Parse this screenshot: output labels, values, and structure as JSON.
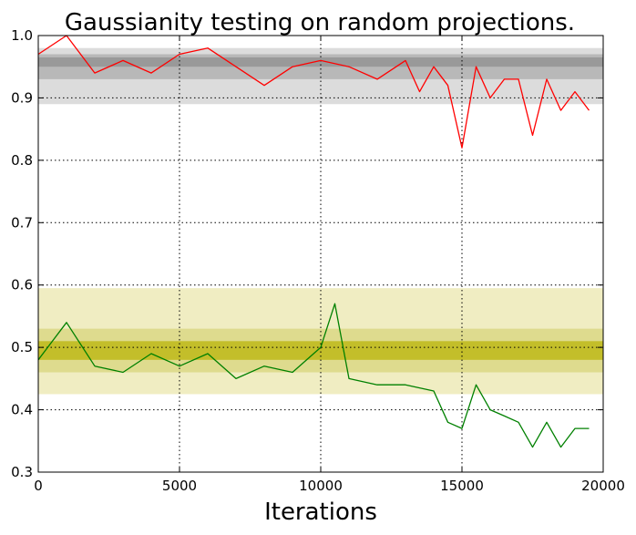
{
  "chart_data": {
    "type": "line",
    "title": "Gaussianity testing on random projections.",
    "xlabel": "Iterations",
    "ylabel": "",
    "xlim": [
      0,
      20000
    ],
    "ylim": [
      0.3,
      1.0
    ],
    "x_ticks": [
      0,
      5000,
      10000,
      15000,
      20000
    ],
    "x_tick_labels": [
      "0",
      "5000",
      "10000",
      "15000",
      "20000"
    ],
    "y_ticks": [
      0.3,
      0.4,
      0.5,
      0.6,
      0.7,
      0.8,
      0.9,
      1.0
    ],
    "y_tick_labels": [
      "0.3",
      "0.4",
      "0.5",
      "0.6",
      "0.7",
      "0.8",
      "0.9",
      "1.0"
    ],
    "grid": true,
    "legend": "none",
    "bands": [
      {
        "name": "upper-band-outer",
        "y0": 0.89,
        "y1": 0.98,
        "color": "#dcdcdc"
      },
      {
        "name": "upper-band-mid",
        "y0": 0.93,
        "y1": 0.97,
        "color": "#b8b8b8"
      },
      {
        "name": "upper-band-inner",
        "y0": 0.95,
        "y1": 0.965,
        "color": "#999999"
      },
      {
        "name": "lower-band-outer",
        "y0": 0.425,
        "y1": 0.595,
        "color": "#f0edc2"
      },
      {
        "name": "lower-band-mid",
        "y0": 0.46,
        "y1": 0.53,
        "color": "#dedb8e"
      },
      {
        "name": "lower-band-inner",
        "y0": 0.48,
        "y1": 0.51,
        "color": "#c3be2a"
      }
    ],
    "series": [
      {
        "color": "#ff0000",
        "x": [
          0,
          1000,
          2000,
          3000,
          4000,
          5000,
          6000,
          7000,
          8000,
          9000,
          10000,
          11000,
          12000,
          13000,
          13500,
          14000,
          14500,
          15000,
          15500,
          16000,
          16500,
          17000,
          17500,
          18000,
          18500,
          19000,
          19500
        ],
        "values": [
          0.97,
          1.0,
          0.94,
          0.96,
          0.94,
          0.97,
          0.98,
          0.95,
          0.92,
          0.95,
          0.96,
          0.95,
          0.93,
          0.96,
          0.91,
          0.95,
          0.92,
          0.82,
          0.95,
          0.9,
          0.93,
          0.93,
          0.84,
          0.93,
          0.88,
          0.91,
          0.88
        ]
      },
      {
        "color": "#008000",
        "x": [
          0,
          1000,
          2000,
          3000,
          4000,
          5000,
          6000,
          7000,
          8000,
          9000,
          10000,
          10500,
          11000,
          12000,
          13000,
          14000,
          14500,
          15000,
          15500,
          16000,
          16500,
          17000,
          17500,
          18000,
          18500,
          19000,
          19500
        ],
        "values": [
          0.48,
          0.54,
          0.47,
          0.46,
          0.49,
          0.47,
          0.49,
          0.45,
          0.47,
          0.46,
          0.5,
          0.57,
          0.45,
          0.44,
          0.44,
          0.43,
          0.38,
          0.37,
          0.44,
          0.4,
          0.39,
          0.38,
          0.34,
          0.38,
          0.34,
          0.37,
          0.37
        ]
      }
    ]
  }
}
